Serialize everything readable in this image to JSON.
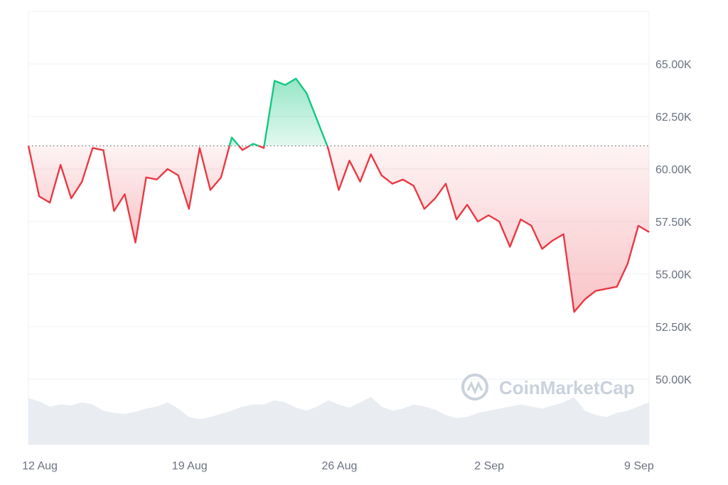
{
  "chart_data": {
    "type": "area",
    "x_tick_labels": [
      "12 Aug",
      "19 Aug",
      "26 Aug",
      "2 Sep",
      "9 Sep"
    ],
    "y_tick_labels": [
      "65.00K",
      "62.50K",
      "60.00K",
      "57.50K",
      "55.00K",
      "52.50K",
      "50.00K"
    ],
    "y_ticks": [
      65000,
      62500,
      60000,
      57500,
      55000,
      52500,
      50000
    ],
    "ylim": [
      47000,
      68500
    ],
    "baseline": 61100,
    "x_range": [
      "2024-08-12",
      "2024-09-10"
    ],
    "series": [
      {
        "x": [
          "2024-08-12",
          "2024-08-12T12:00",
          "2024-08-13",
          "2024-08-13T12:00",
          "2024-08-14",
          "2024-08-14T12:00",
          "2024-08-15",
          "2024-08-15T12:00",
          "2024-08-16",
          "2024-08-16T12:00",
          "2024-08-17",
          "2024-08-17T12:00",
          "2024-08-18",
          "2024-08-18T12:00",
          "2024-08-19",
          "2024-08-19T12:00",
          "2024-08-20",
          "2024-08-20T12:00",
          "2024-08-21",
          "2024-08-21T12:00",
          "2024-08-22",
          "2024-08-22T12:00",
          "2024-08-23",
          "2024-08-23T12:00",
          "2024-08-24",
          "2024-08-24T12:00",
          "2024-08-25",
          "2024-08-25T12:00",
          "2024-08-26",
          "2024-08-26T12:00",
          "2024-08-27",
          "2024-08-27T12:00",
          "2024-08-28",
          "2024-08-28T12:00",
          "2024-08-29",
          "2024-08-29T12:00",
          "2024-08-30",
          "2024-08-30T12:00",
          "2024-08-31",
          "2024-08-31T12:00",
          "2024-09-01",
          "2024-09-01T12:00",
          "2024-09-02",
          "2024-09-02T12:00",
          "2024-09-03",
          "2024-09-03T12:00",
          "2024-09-04",
          "2024-09-04T12:00",
          "2024-09-05",
          "2024-09-05T12:00",
          "2024-09-06",
          "2024-09-06T12:00",
          "2024-09-07",
          "2024-09-07T12:00",
          "2024-09-08",
          "2024-09-08T12:00",
          "2024-09-09",
          "2024-09-09T12:00",
          "2024-09-10"
        ],
        "values": [
          61100,
          58700,
          58400,
          60200,
          58600,
          59400,
          61000,
          60900,
          58000,
          58800,
          56500,
          59600,
          59500,
          60000,
          59700,
          58100,
          61000,
          59000,
          59600,
          61500,
          60900,
          61200,
          61000,
          64200,
          64000,
          64300,
          63600,
          62300,
          61000,
          59000,
          60400,
          59400,
          60700,
          59700,
          59300,
          59500,
          59200,
          58100,
          58600,
          59300,
          57600,
          58300,
          57500,
          57800,
          57500,
          56300,
          57600,
          57300,
          56200,
          56600,
          56900,
          53200,
          53800,
          54200,
          54300,
          54400,
          55500,
          57300,
          57000
        ]
      }
    ],
    "volume": [
      49100,
      48950,
      48700,
      48800,
      48750,
      48900,
      48800,
      48500,
      48400,
      48350,
      48450,
      48600,
      48700,
      48900,
      48600,
      48200,
      48100,
      48200,
      48350,
      48500,
      48700,
      48800,
      48800,
      49000,
      48900,
      48650,
      48500,
      48700,
      49000,
      48800,
      48650,
      48900,
      49150,
      48700,
      48500,
      48600,
      48800,
      48700,
      48550,
      48300,
      48150,
      48200,
      48400,
      48500,
      48600,
      48700,
      48800,
      48700,
      48600,
      48750,
      48900,
      49150,
      48500,
      48300,
      48200,
      48400,
      48500,
      48700,
      48900
    ],
    "colors": {
      "up": "#16c784",
      "down": "#ea3943",
      "baseline": "#666666",
      "grid": "#eef0f3",
      "volume": "#e9edf2"
    },
    "watermark": "CoinMarketCap",
    "grid": true
  }
}
